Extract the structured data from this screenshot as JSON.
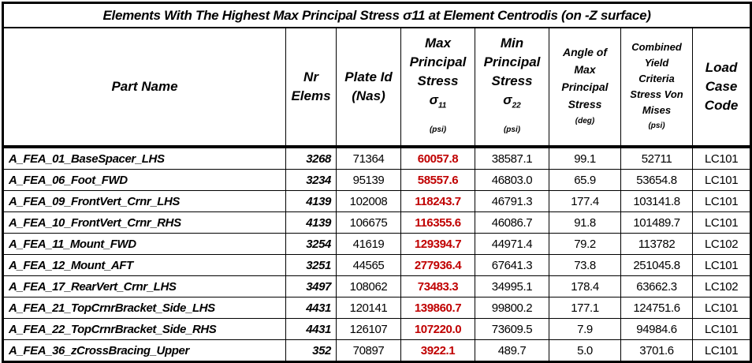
{
  "title": "Elements With The Highest Max Principal Stress σ11 at Element Centrodis (on -Z surface)",
  "headers": {
    "part_name": "Part Name",
    "nr_elems": [
      "Nr",
      "Elems"
    ],
    "plate_id": [
      "Plate Id",
      "(Nas)"
    ],
    "max_stress": {
      "lines": [
        "Max",
        "Principal",
        "Stress"
      ],
      "symbol": "σ",
      "sub": "11",
      "unit": "(psi)"
    },
    "min_stress": {
      "lines": [
        "Min",
        "Principal",
        "Stress"
      ],
      "symbol": "σ",
      "sub": "22",
      "unit": "(psi)"
    },
    "angle": {
      "lines": [
        "Angle of",
        "Max",
        "Principal",
        "Stress"
      ],
      "unit": "(deg)"
    },
    "von_mises": {
      "lines": [
        "Combined",
        "Yield",
        "Criteria",
        "Stress Von",
        "Mises"
      ],
      "unit": "(psi)"
    },
    "load_case": [
      "Load",
      "Case",
      "Code"
    ]
  },
  "highlight_color": "#c00000",
  "rows": [
    {
      "name": "A_FEA_01_BaseSpacer_LHS",
      "nr": "3268",
      "plate": "71364",
      "max": "60057.8",
      "min": "38587.1",
      "angle": "99.1",
      "vm": "52711",
      "lc": "LC101"
    },
    {
      "name": "A_FEA_06_Foot_FWD",
      "nr": "3234",
      "plate": "95139",
      "max": "58557.6",
      "min": "46803.0",
      "angle": "65.9",
      "vm": "53654.8",
      "lc": "LC101"
    },
    {
      "name": "A_FEA_09_FrontVert_Crnr_LHS",
      "nr": "4139",
      "plate": "102008",
      "max": "118243.7",
      "min": "46791.3",
      "angle": "177.4",
      "vm": "103141.8",
      "lc": "LC101"
    },
    {
      "name": "A_FEA_10_FrontVert_Crnr_RHS",
      "nr": "4139",
      "plate": "106675",
      "max": "116355.6",
      "min": "46086.7",
      "angle": "91.8",
      "vm": "101489.7",
      "lc": "LC101"
    },
    {
      "name": "A_FEA_11_Mount_FWD",
      "nr": "3254",
      "plate": "41619",
      "max": "129394.7",
      "min": "44971.4",
      "angle": "79.2",
      "vm": "113782",
      "lc": "LC102"
    },
    {
      "name": "A_FEA_12_Mount_AFT",
      "nr": "3251",
      "plate": "44565",
      "max": "277936.4",
      "min": "67641.3",
      "angle": "73.8",
      "vm": "251045.8",
      "lc": "LC101"
    },
    {
      "name": "A_FEA_17_RearVert_Crnr_LHS",
      "nr": "3497",
      "plate": "108062",
      "max": "73483.3",
      "min": "34995.1",
      "angle": "178.4",
      "vm": "63662.3",
      "lc": "LC102"
    },
    {
      "name": "A_FEA_21_TopCrnrBracket_Side_LHS",
      "nr": "4431",
      "plate": "120141",
      "max": "139860.7",
      "min": "99800.2",
      "angle": "177.1",
      "vm": "124751.6",
      "lc": "LC101"
    },
    {
      "name": "A_FEA_22_TopCrnrBracket_Side_RHS",
      "nr": "4431",
      "plate": "126107",
      "max": "107220.0",
      "min": "73609.5",
      "angle": "7.9",
      "vm": "94984.6",
      "lc": "LC101"
    },
    {
      "name": "A_FEA_36_zCrossBracing_Upper",
      "nr": "352",
      "plate": "70897",
      "max": "3922.1",
      "min": "489.7",
      "angle": "5.0",
      "vm": "3701.6",
      "lc": "LC101"
    }
  ]
}
